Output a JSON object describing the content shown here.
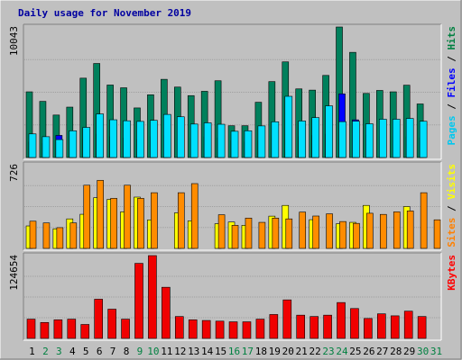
{
  "chart_data": {
    "type": "bar",
    "title": "Daily usage for November 2019",
    "categories": [
      "1",
      "2",
      "3",
      "4",
      "5",
      "6",
      "7",
      "8",
      "9",
      "10",
      "11",
      "12",
      "13",
      "14",
      "15",
      "16",
      "17",
      "18",
      "19",
      "20",
      "21",
      "22",
      "23",
      "24",
      "25",
      "26",
      "27",
      "28",
      "29",
      "30",
      "31"
    ],
    "weekend_days": [
      "2",
      "3",
      "9",
      "10",
      "16",
      "17",
      "23",
      "24",
      "30",
      "31"
    ],
    "panels": [
      {
        "id": "pages-files-hits",
        "ymax_label": "10043",
        "ylim": [
          0,
          10043
        ],
        "label_parts": [
          {
            "text": "Pages",
            "color": "#00c8f0"
          },
          {
            "text": " / ",
            "color": "#000000"
          },
          {
            "text": "Files",
            "color": "#0000ff"
          },
          {
            "text": " / ",
            "color": "#000000"
          },
          {
            "text": "Hits",
            "color": "#008040"
          }
        ],
        "series": [
          {
            "name": "Hits",
            "color": "#00805c",
            "values": [
              5054,
              4320,
              3268,
              3877,
              6106,
              7236,
              5577,
              5366,
              3815,
              4827,
              6017,
              5420,
              4762,
              5094,
              5906,
              2445,
              2445,
              4251,
              5841,
              7360,
              5281,
              5186,
              6317,
              10043,
              8093,
              4932,
              5161,
              5054,
              5565,
              4121,
              0
            ]
          },
          {
            "name": "Files",
            "color": "#0000ff",
            "values": [
              1200,
              1100,
              1700,
              1300,
              1400,
              1800,
              1600,
              1500,
              1400,
              1600,
              1700,
              1600,
              1500,
              1600,
              1500,
              1300,
              1200,
              1300,
              1700,
              1800,
              1600,
              1700,
              1800,
              4900,
              2900,
              1700,
              1600,
              1600,
              1600,
              1500,
              0
            ]
          },
          {
            "name": "Pages",
            "color": "#00e0ff",
            "values": [
              1817,
              1602,
              1379,
              2058,
              2317,
              3352,
              2905,
              2827,
              2778,
              2860,
              3316,
              3135,
              2575,
              2667,
              2560,
              2019,
              2058,
              2433,
              2750,
              4709,
              2809,
              3072,
              3975,
              2758,
              2792,
              2595,
              2946,
              2946,
              3005,
              2788,
              0
            ]
          }
        ]
      },
      {
        "id": "sites-visits",
        "ymax_label": "726",
        "ylim": [
          0,
          726
        ],
        "label_parts": [
          {
            "text": "Sites",
            "color": "#ff8000"
          },
          {
            "text": " / ",
            "color": "#000000"
          },
          {
            "text": "Visits",
            "color": "#ffff00"
          }
        ],
        "series": [
          {
            "name": "Visits",
            "color": "#ffff00",
            "values": [
              195,
              0,
              170,
              256,
              296,
              440,
              425,
              317,
              445,
              247,
              0,
              308,
              239,
              0,
              214,
              229,
              200,
              0,
              280,
              373,
              0,
              249,
              0,
              214,
              226,
              373,
              0,
              0,
              363,
              0,
              0
            ]
          },
          {
            "name": "Sites",
            "color": "#ff8c00",
            "values": [
              236,
              221,
              180,
              221,
              548,
              590,
              434,
              548,
              434,
              483,
              0,
              483,
              562,
              0,
              292,
              200,
              263,
              226,
              263,
              256,
              315,
              281,
              300,
              233,
              217,
              305,
              295,
              317,
              325,
              483,
              248
            ]
          }
        ]
      },
      {
        "id": "kbytes",
        "ymax_label": "124654",
        "ylim": [
          0,
          124654
        ],
        "label_parts": [
          {
            "text": "KBytes",
            "color": "#ff0000"
          }
        ],
        "series": [
          {
            "name": "KBytes",
            "color": "#f00000",
            "values": [
              29000,
              24000,
              28000,
              29000,
              21000,
              59000,
              44000,
              29000,
              113000,
              124654,
              77000,
              33000,
              28000,
              27000,
              26000,
              25000,
              25000,
              29000,
              36000,
              58000,
              35000,
              33000,
              35000,
              54000,
              45000,
              30000,
              37000,
              34000,
              41000,
              33000,
              0
            ]
          }
        ]
      }
    ],
    "colors": {
      "background": "#c0c0c0",
      "frame_light": "#ffffff",
      "frame_dark": "#808080",
      "weekday_label": "#000000",
      "weekend_label": "#008040"
    }
  }
}
